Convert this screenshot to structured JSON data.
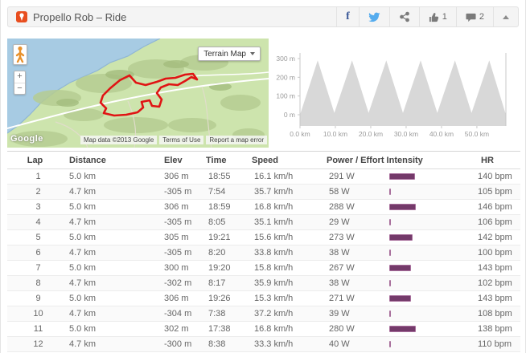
{
  "header": {
    "title": "Propello Rob – Ride",
    "like_count": "1",
    "comment_count": "2"
  },
  "map": {
    "type_button_label": "Terrain Map",
    "zoom_in": "+",
    "zoom_out": "−",
    "attribution": "Map data ©2013 Google",
    "terms_link": "Terms of Use",
    "report_link": "Report a map error",
    "google_logo": "Google",
    "route_color": "#e01414"
  },
  "chart_data": {
    "type": "area",
    "title": "",
    "xlabel": "",
    "ylabel": "",
    "legend": false,
    "grid": false,
    "fill_color": "#d8d8d8",
    "xlim": [
      0,
      58.2
    ],
    "ylim": [
      0,
      300
    ],
    "x_ticks": [
      "0.0 km",
      "10.0 km",
      "20.0 km",
      "30.0 km",
      "40.0 km",
      "50.0 km"
    ],
    "x_tick_values": [
      0,
      10,
      20,
      30,
      40,
      50
    ],
    "y_ticks": [
      "300 m",
      "200 m",
      "100 m",
      "0 m"
    ],
    "y_tick_values": [
      300,
      200,
      100,
      0
    ],
    "profile_x": [
      0,
      5,
      9.7,
      14.7,
      19.4,
      24.4,
      29.1,
      34.1,
      38.8,
      43.8,
      48.5,
      53.5,
      58.2
    ],
    "profile_y": [
      0,
      290,
      10,
      290,
      10,
      290,
      10,
      290,
      10,
      290,
      10,
      290,
      0
    ]
  },
  "table": {
    "columns": [
      "Lap",
      "Distance",
      "Elev",
      "Time",
      "Speed",
      "Power / Effort Intensity",
      "HR"
    ],
    "bar_color": "#743a6a",
    "rows": [
      {
        "lap": "1",
        "distance": "5.0 km",
        "elev": "306 m",
        "time": "18:55",
        "speed": "16.1 km/h",
        "power": "291 W",
        "bar": 32,
        "hr": "140 bpm"
      },
      {
        "lap": "2",
        "distance": "4.7 km",
        "elev": "-305 m",
        "time": "7:54",
        "speed": "35.7 km/h",
        "power": "58 W",
        "bar": 2,
        "hr": "105 bpm"
      },
      {
        "lap": "3",
        "distance": "5.0 km",
        "elev": "306 m",
        "time": "18:59",
        "speed": "16.8 km/h",
        "power": "288 W",
        "bar": 33,
        "hr": "146 bpm"
      },
      {
        "lap": "4",
        "distance": "4.7 km",
        "elev": "-305 m",
        "time": "8:05",
        "speed": "35.1 km/h",
        "power": "29 W",
        "bar": 1,
        "hr": "106 bpm"
      },
      {
        "lap": "5",
        "distance": "5.0 km",
        "elev": "305 m",
        "time": "19:21",
        "speed": "15.6 km/h",
        "power": "273 W",
        "bar": 29,
        "hr": "142 bpm"
      },
      {
        "lap": "6",
        "distance": "4.7 km",
        "elev": "-305 m",
        "time": "8:20",
        "speed": "33.8 km/h",
        "power": "38 W",
        "bar": 2,
        "hr": "100 bpm"
      },
      {
        "lap": "7",
        "distance": "5.0 km",
        "elev": "300 m",
        "time": "19:20",
        "speed": "15.8 km/h",
        "power": "267 W",
        "bar": 27,
        "hr": "143 bpm"
      },
      {
        "lap": "8",
        "distance": "4.7 km",
        "elev": "-302 m",
        "time": "8:17",
        "speed": "35.9 km/h",
        "power": "38 W",
        "bar": 1,
        "hr": "102 bpm"
      },
      {
        "lap": "9",
        "distance": "5.0 km",
        "elev": "306 m",
        "time": "19:26",
        "speed": "15.3 km/h",
        "power": "271 W",
        "bar": 27,
        "hr": "143 bpm"
      },
      {
        "lap": "10",
        "distance": "4.7 km",
        "elev": "-304 m",
        "time": "7:38",
        "speed": "37.2 km/h",
        "power": "39 W",
        "bar": 2,
        "hr": "108 bpm"
      },
      {
        "lap": "11",
        "distance": "5.0 km",
        "elev": "302 m",
        "time": "17:38",
        "speed": "16.8 km/h",
        "power": "280 W",
        "bar": 33,
        "hr": "138 bpm"
      },
      {
        "lap": "12",
        "distance": "4.7 km",
        "elev": "-300 m",
        "time": "8:38",
        "speed": "33.3 km/h",
        "power": "40 W",
        "bar": 1,
        "hr": "110 bpm"
      }
    ]
  }
}
